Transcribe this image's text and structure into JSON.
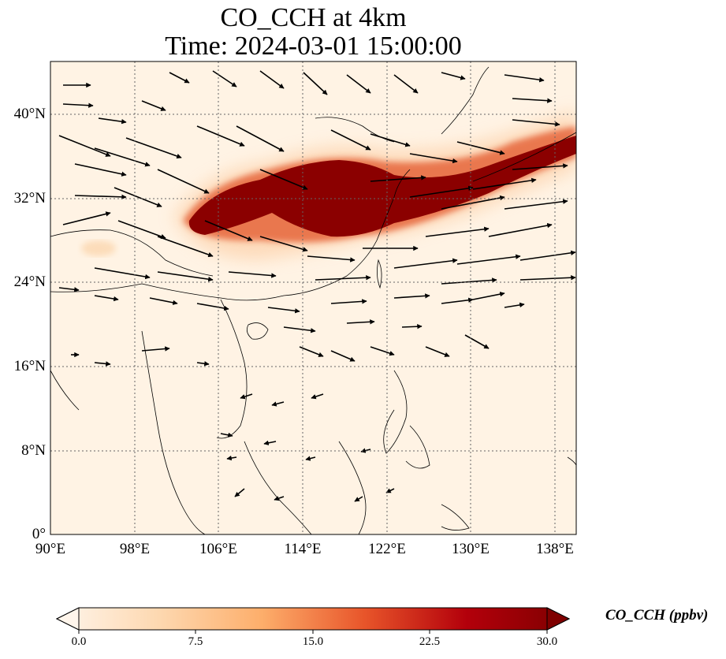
{
  "title": "CO_CCH at 4km",
  "subtitle": "Time: 2024-03-01 15:00:00",
  "map": {
    "lon_range": [
      90,
      140
    ],
    "lat_range": [
      0,
      45
    ],
    "lon_ticks": [
      "90°E",
      "98°E",
      "106°E",
      "114°E",
      "122°E",
      "130°E",
      "138°E"
    ],
    "lat_ticks": [
      "0°",
      "8°N",
      "16°N",
      "24°N",
      "32°N",
      "40°N"
    ],
    "gridlines": true
  },
  "colorbar": {
    "label": "CO_CCH (ppbv)",
    "ticks": [
      "0.0",
      "7.5",
      "15.0",
      "22.5",
      "30.0"
    ],
    "range": [
      0,
      30
    ],
    "extend": "both",
    "colors": [
      "#fff5eb",
      "#fdd8b0",
      "#fdae6b",
      "#f16913",
      "#d94801",
      "#a63603",
      "#7f0000"
    ]
  },
  "plume": {
    "description_color": "#8b0000"
  }
}
